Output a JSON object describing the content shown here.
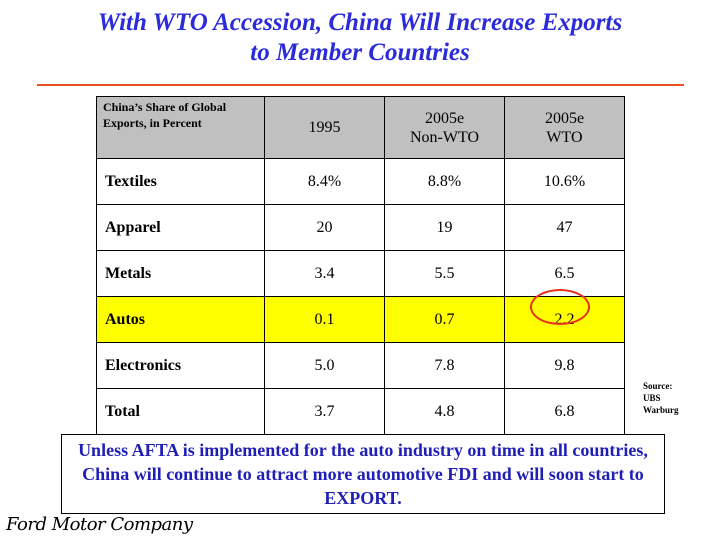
{
  "slide": {
    "title_line1": "With WTO Accession, China Will Increase Exports",
    "title_line2": "to Member Countries",
    "accent_color": "#e8521a",
    "title_color": "#2b2bd9"
  },
  "table": {
    "corner_label": "China’s Share of Global Exports, in Percent",
    "columns": [
      {
        "line1": "1995",
        "line2": ""
      },
      {
        "line1": "2005e",
        "line2": "Non-WTO"
      },
      {
        "line1": "2005e",
        "line2": "WTO"
      }
    ],
    "rows": [
      {
        "label": "Textiles",
        "values": [
          "8.4%",
          "8.8%",
          "10.6%"
        ]
      },
      {
        "label": "Apparel",
        "values": [
          "20",
          "19",
          "47"
        ]
      },
      {
        "label": "Metals",
        "values": [
          "3.4",
          "5.5",
          "6.5"
        ]
      },
      {
        "label": "Autos",
        "values": [
          "0.1",
          "0.7",
          "2.2"
        ],
        "highlight": true,
        "highlight_color": "#ffff00"
      },
      {
        "label": "Electronics",
        "values": [
          "5.0",
          "7.8",
          "9.8"
        ]
      },
      {
        "label": "Total",
        "values": [
          "3.7",
          "4.8",
          "6.8"
        ]
      }
    ]
  },
  "source": {
    "line1": "Source:",
    "line2": "UBS",
    "line3": "Warburg"
  },
  "callout": {
    "text": "Unless AFTA is implemented for the auto industry on time in all countries, China will continue to attract more automotive FDI and will soon start to EXPORT.",
    "text_color": "#1f1fb8"
  },
  "logo": {
    "text": "Ford Motor Company"
  }
}
